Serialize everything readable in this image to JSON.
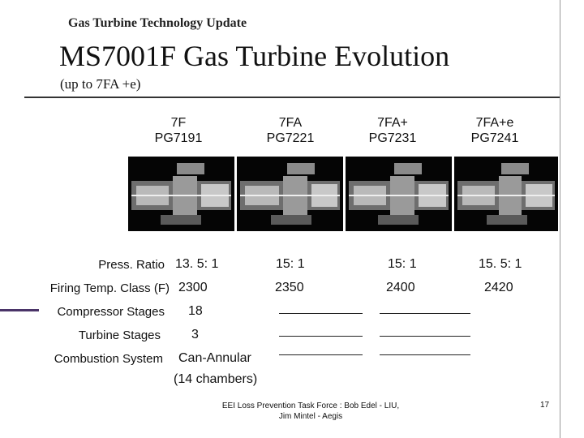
{
  "header": {
    "title": "Gas Turbine Technology Update"
  },
  "slide": {
    "title": "MS7001F Gas Turbine Evolution",
    "subtitle": "(up to 7FA +e)"
  },
  "models": [
    {
      "name": "7F",
      "code": "PG7191"
    },
    {
      "name": "7FA",
      "code": "PG7221"
    },
    {
      "name": "7FA+",
      "code": "PG7231"
    },
    {
      "name": "7FA+e",
      "code": "PG7241"
    }
  ],
  "rows": {
    "press_ratio": {
      "label": "Press. Ratio",
      "values": [
        "13. 5: 1",
        "15: 1",
        "15: 1",
        "15. 5: 1"
      ]
    },
    "firing_temp": {
      "label": "Firing Temp. Class (F)",
      "values": [
        "2300",
        "2350",
        "2400",
        "2420"
      ]
    },
    "compressor_stages": {
      "label": "Compressor Stages",
      "value": "18"
    },
    "turbine_stages": {
      "label": "Turbine Stages",
      "value": "3"
    },
    "combustion_system": {
      "label": "Combustion System",
      "value_line1": "Can-Annular",
      "value_line2": "(14 chambers)"
    }
  },
  "footer": {
    "line1": "EEI Loss Prevention Task Force : Bob Edel - LIU,",
    "line2": "Jim Mintel - Aegis",
    "page_number": "17"
  },
  "colors": {
    "accent_rule": "#4a3468",
    "image_bg": "#050505"
  }
}
